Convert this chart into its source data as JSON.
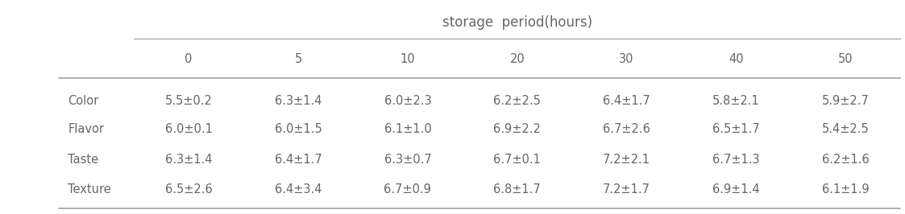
{
  "title": "storage  period(hours)",
  "col_headers": [
    "0",
    "5",
    "10",
    "20",
    "30",
    "40",
    "50"
  ],
  "row_headers": [
    "Color",
    "Flavor",
    "Taste",
    "Texture"
  ],
  "cells": [
    [
      "5.5±0.2",
      "6.3±1.4",
      "6.0±2.3",
      "6.2±2.5",
      "6.4±1.7",
      "5.8±2.1",
      "5.9±2.7"
    ],
    [
      "6.0±0.1",
      "6.0±1.5",
      "6.1±1.0",
      "6.9±2.2",
      "6.7±2.6",
      "6.5±1.7",
      "5.4±2.5"
    ],
    [
      "6.3±1.4",
      "6.4±1.7",
      "6.3±0.7",
      "6.7±0.1",
      "7.2±2.1",
      "6.7±1.3",
      "6.2±1.6"
    ],
    [
      "6.5±2.6",
      "6.4±3.4",
      "6.7±0.9",
      "6.8±1.7",
      "7.2±1.7",
      "6.9±1.4",
      "6.1±1.9"
    ]
  ],
  "font_size": 10.5,
  "header_font_size": 10.5,
  "title_font_size": 12,
  "bg_color": "#ffffff",
  "text_color": "#666666",
  "line_color": "#999999"
}
